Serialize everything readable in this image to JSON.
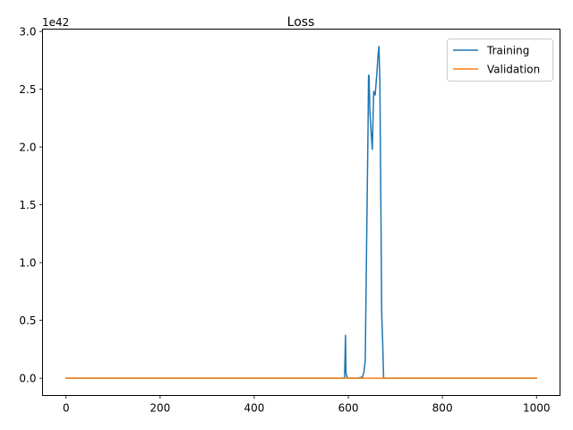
{
  "chart_data": {
    "type": "line",
    "title": "Loss",
    "xlabel": "",
    "ylabel": "",
    "y_scale_label": "1e42",
    "xlim": [
      -50,
      1050
    ],
    "ylim": [
      -0.15,
      3.02
    ],
    "xticks": [
      0,
      200,
      400,
      600,
      800,
      1000
    ],
    "xtick_labels": [
      "0",
      "200",
      "400",
      "600",
      "800",
      "1000"
    ],
    "yticks": [
      0.0,
      0.5,
      1.0,
      1.5,
      2.0,
      2.5,
      3.0
    ],
    "ytick_labels": [
      "0.0",
      "0.5",
      "1.0",
      "1.5",
      "2.0",
      "2.5",
      "3.0"
    ],
    "grid": false,
    "legend_position": "top-right",
    "series": [
      {
        "name": "Training",
        "color": "#1f77b4",
        "x": [
          0,
          592,
          594,
          595,
          597,
          600,
          620,
          630,
          633,
          636,
          639,
          642,
          643,
          644,
          646,
          649,
          651,
          654,
          657,
          660,
          663,
          665,
          667,
          669,
          671,
          673,
          675,
          680,
          700,
          1000
        ],
        "y": [
          0,
          0,
          0.37,
          0.05,
          0.01,
          0,
          0,
          0.01,
          0.05,
          0.15,
          1.2,
          2.2,
          2.62,
          2.62,
          2.3,
          2.1,
          1.98,
          2.48,
          2.45,
          2.6,
          2.78,
          2.87,
          2.6,
          1.6,
          0.55,
          0.32,
          0,
          0,
          0,
          0
        ]
      },
      {
        "name": "Validation",
        "color": "#ff7f0e",
        "x": [
          0,
          1000
        ],
        "y": [
          0,
          0
        ]
      }
    ]
  }
}
